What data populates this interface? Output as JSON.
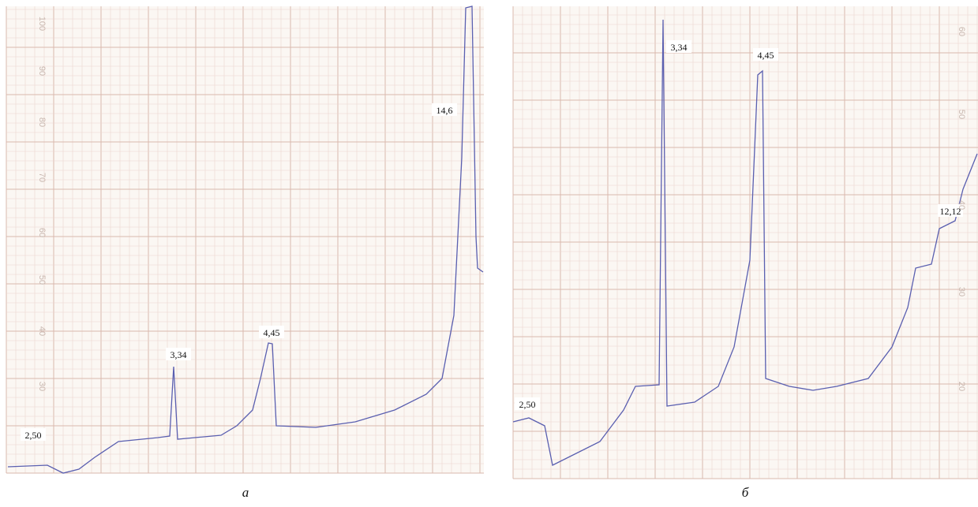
{
  "panels": [
    {
      "caption": "а",
      "peaks": [
        "2,50",
        "3,34",
        "4,45",
        "14,6"
      ],
      "scale_labels": [
        "100",
        "90",
        "80",
        "70",
        "60",
        "50",
        "40",
        "30"
      ]
    },
    {
      "caption": "б",
      "peaks": [
        "2,50",
        "3,34",
        "4,45",
        "12,12"
      ],
      "scale_labels": [
        "60",
        "50",
        "40",
        "30",
        "20"
      ]
    }
  ]
}
